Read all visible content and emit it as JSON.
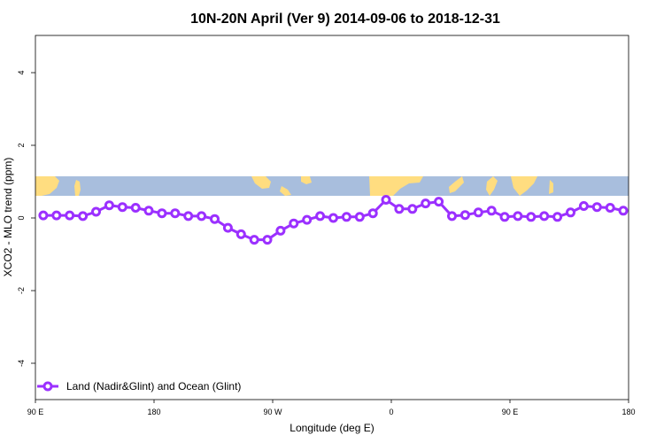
{
  "chart_data": {
    "type": "line",
    "title": "10N-20N April (Ver 9)   2014-09-06 to 2018-12-31",
    "xlabel": "Longitude (deg E)",
    "ylabel": "XCO2 - MLO trend (ppm)",
    "x_ticks": [
      {
        "value": 90,
        "label": "90 E"
      },
      {
        "value": 180,
        "label": "180"
      },
      {
        "value": 270,
        "label": "90 W"
      },
      {
        "value": 360,
        "label": "0"
      },
      {
        "value": 450,
        "label": "90 E"
      },
      {
        "value": 540,
        "label": "180"
      }
    ],
    "y_ticks": [
      -4,
      -2,
      0,
      2,
      4
    ],
    "xlim": [
      90,
      540
    ],
    "ylim": [
      -5,
      5
    ],
    "series": [
      {
        "name": "Land (Nadir&Glint) and Ocean (Glint)",
        "color": "#9B30FF",
        "x": [
          96,
          106,
          116,
          126,
          136,
          146,
          156,
          166,
          176,
          186,
          196,
          206,
          216,
          226,
          236,
          246,
          256,
          266,
          276,
          286,
          296,
          306,
          316,
          326,
          336,
          346,
          356,
          366,
          376,
          386,
          396,
          406,
          416,
          426,
          436,
          446,
          456,
          466,
          476,
          486,
          496,
          506,
          516,
          526,
          536
        ],
        "values": [
          0.07,
          0.07,
          0.07,
          0.05,
          0.17,
          0.35,
          0.3,
          0.28,
          0.2,
          0.13,
          0.13,
          0.05,
          0.05,
          -0.03,
          -0.27,
          -0.45,
          -0.6,
          -0.6,
          -0.35,
          -0.15,
          -0.05,
          0.05,
          0.0,
          0.03,
          0.03,
          0.13,
          0.5,
          0.25,
          0.25,
          0.4,
          0.45,
          0.05,
          0.08,
          0.15,
          0.2,
          0.03,
          0.05,
          0.03,
          0.05,
          0.03,
          0.15,
          0.33,
          0.3,
          0.28,
          0.2
        ]
      }
    ],
    "map_strip": {
      "ocean_color": "#A8BEDD",
      "land_color": "#FFDD80"
    },
    "legend_position": "bottom-left",
    "grid": false
  }
}
